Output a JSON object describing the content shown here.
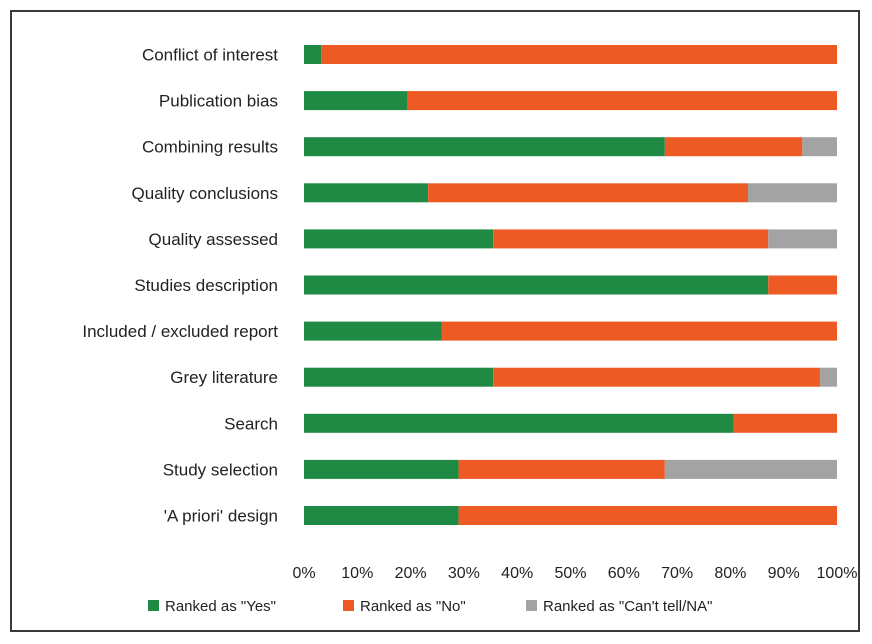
{
  "chart_data": {
    "type": "bar",
    "orientation": "horizontal",
    "stacked": true,
    "categories": [
      "Conflict of interest",
      "Publication bias",
      "Combining results",
      "Quality conclusions",
      "Quality assessed",
      "Studies description",
      "Included / excluded report",
      "Grey literature",
      "Search",
      "Study selection",
      "'A priori' design"
    ],
    "series": [
      {
        "name": "Ranked as \"Yes\"",
        "color": "#1e8a43",
        "values": [
          3.2,
          19.4,
          67.7,
          23.3,
          35.5,
          87.1,
          25.8,
          35.5,
          80.6,
          29.0,
          29.0
        ]
      },
      {
        "name": "Ranked as \"No\"",
        "color": "#ee5a24",
        "values": [
          96.8,
          80.6,
          25.8,
          60.0,
          51.6,
          12.9,
          74.2,
          61.3,
          19.4,
          38.7,
          71.0
        ]
      },
      {
        "name": "Ranked as \"Can't tell/NA\"",
        "color": "#a3a3a3",
        "values": [
          0,
          0,
          6.5,
          16.7,
          12.9,
          0,
          0,
          3.2,
          0,
          32.3,
          0
        ]
      }
    ],
    "xticks": [
      "0%",
      "10%",
      "20%",
      "30%",
      "40%",
      "50%",
      "60%",
      "70%",
      "80%",
      "90%",
      "100%"
    ],
    "xlim": [
      0,
      100
    ],
    "title": "",
    "xlabel": "",
    "ylabel": "",
    "grid": false,
    "legend_position": "bottom"
  }
}
